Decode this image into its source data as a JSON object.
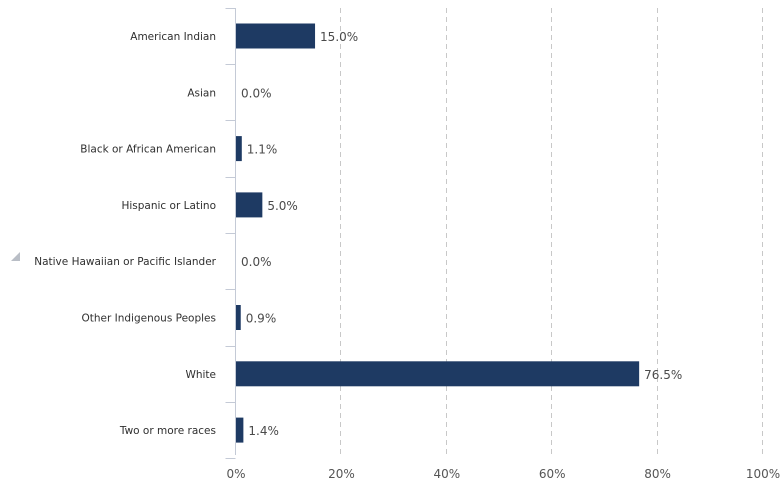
{
  "chart_data": {
    "type": "bar",
    "orientation": "horizontal",
    "categories": [
      "American Indian",
      "Asian",
      "Black or African American",
      "Hispanic or Latino",
      "Native Hawaiian or Pacific Islander",
      "Other Indigenous Peoples",
      "White",
      "Two or more races"
    ],
    "values": [
      15.0,
      0.0,
      1.1,
      5.0,
      0.0,
      0.9,
      76.5,
      1.4
    ],
    "value_labels": [
      "15.0%",
      "0.0%",
      "1.1%",
      "5.0%",
      "0.0%",
      "0.9%",
      "76.5%",
      "1.4%"
    ],
    "xlim": [
      0,
      100
    ],
    "x_ticks": [
      0,
      20,
      40,
      60,
      80,
      100
    ],
    "x_tick_labels": [
      "0%",
      "20%",
      "40%",
      "60%",
      "80%",
      "100%"
    ],
    "grid": "vertical dashed",
    "bar_color": "#1e3a63",
    "title": "",
    "xlabel": "",
    "ylabel": ""
  }
}
